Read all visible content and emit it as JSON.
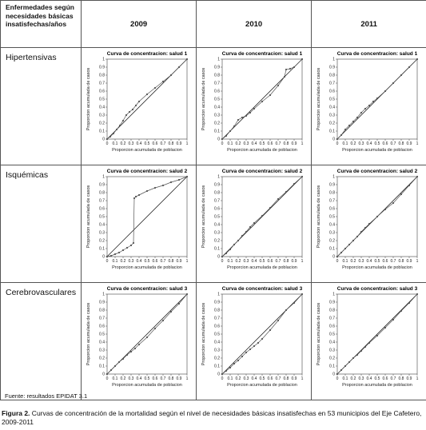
{
  "table": {
    "header_label": "Enfermedades según necesidades básicas insatisfechas/años",
    "years": [
      "2009",
      "2010",
      "2011"
    ],
    "rows": [
      {
        "label": "Hipertensivas"
      },
      {
        "label": "Isquémicas"
      },
      {
        "label": "Cerebrovasculares"
      }
    ]
  },
  "source": "Fuente: resultados EPIDAT 3.1",
  "caption": {
    "prefix": "Figura 2.",
    "text": " Curvas de concentración de la mortalidad según el nivel de necesidades básicas insatisfechas en 53 municipios del Eje Cafetero, 2009-2011"
  },
  "chart_data": [
    {
      "type": "line",
      "disease": "Hipertensivas",
      "year": "2009",
      "title": "Curva de concentracion: salud 1",
      "xlabel": "Proporcion acumulada de poblacion",
      "ylabel": "Proporcion acumulada de casos",
      "xlim": [
        0,
        1
      ],
      "ylim": [
        0,
        1
      ],
      "xticks": [
        "0",
        "0.1",
        "0.2",
        "0.3",
        "0.4",
        "0.5",
        "0.6",
        "0.7",
        "0.8",
        "0.9",
        "1"
      ],
      "yticks": [
        "0",
        "0.1",
        "0.2",
        "0.3",
        "0.4",
        "0.5",
        "0.6",
        "0.7",
        "0.8",
        "0.9",
        "1"
      ],
      "series": [
        {
          "x": [
            0,
            0.04,
            0.08,
            0.12,
            0.16,
            0.2,
            0.24,
            0.28,
            0.32,
            0.36,
            0.4,
            0.5,
            0.6,
            0.7,
            0.8,
            0.9,
            1
          ],
          "y": [
            0,
            0.03,
            0.07,
            0.12,
            0.17,
            0.23,
            0.3,
            0.34,
            0.37,
            0.42,
            0.47,
            0.56,
            0.64,
            0.72,
            0.8,
            0.9,
            1
          ]
        }
      ]
    },
    {
      "type": "line",
      "disease": "Hipertensivas",
      "year": "2010",
      "title": "Curva de concentracion: salud 1",
      "xlabel": "Proporcion acumulada de poblacion",
      "ylabel": "Proporcion acumulada de casos",
      "xlim": [
        0,
        1
      ],
      "ylim": [
        0,
        1
      ],
      "xticks": [
        "0",
        "0.1",
        "0.2",
        "0.3",
        "0.4",
        "0.5",
        "0.6",
        "0.7",
        "0.8",
        "0.9",
        "1"
      ],
      "yticks": [
        "0",
        "0.1",
        "0.2",
        "0.3",
        "0.4",
        "0.5",
        "0.6",
        "0.7",
        "0.8",
        "0.9",
        "1"
      ],
      "series": [
        {
          "x": [
            0,
            0.05,
            0.1,
            0.15,
            0.2,
            0.25,
            0.3,
            0.35,
            0.4,
            0.5,
            0.6,
            0.7,
            0.78,
            0.8,
            0.85,
            0.9,
            1
          ],
          "y": [
            0,
            0.04,
            0.1,
            0.16,
            0.24,
            0.27,
            0.29,
            0.33,
            0.38,
            0.47,
            0.55,
            0.67,
            0.78,
            0.87,
            0.88,
            0.9,
            1
          ]
        }
      ]
    },
    {
      "type": "line",
      "disease": "Hipertensivas",
      "year": "2011",
      "title": "Curva de concentracion: salud 1",
      "xlabel": "Proporcion acumulada de poblacion",
      "ylabel": "Proporcion acumulada de casos",
      "xlim": [
        0,
        1
      ],
      "ylim": [
        0,
        1
      ],
      "xticks": [
        "0",
        "0.1",
        "0.2",
        "0.3",
        "0.4",
        "0.5",
        "0.6",
        "0.7",
        "0.8",
        "0.9",
        "1"
      ],
      "yticks": [
        "0",
        "0.1",
        "0.2",
        "0.3",
        "0.4",
        "0.5",
        "0.6",
        "0.7",
        "0.8",
        "0.9",
        "1"
      ],
      "series": [
        {
          "x": [
            0,
            0.05,
            0.1,
            0.15,
            0.2,
            0.25,
            0.3,
            0.35,
            0.4,
            0.45,
            0.5,
            0.6,
            0.7,
            0.8,
            0.9,
            1
          ],
          "y": [
            0,
            0.05,
            0.12,
            0.17,
            0.22,
            0.27,
            0.33,
            0.38,
            0.42,
            0.47,
            0.51,
            0.6,
            0.7,
            0.8,
            0.9,
            1
          ]
        }
      ]
    },
    {
      "type": "line",
      "disease": "Isquémicas",
      "year": "2009",
      "title": "Curva de concentracion: salud 2",
      "xlabel": "Proporcion acumulada de poblacion",
      "ylabel": "Proporcion acumulada de casos",
      "xlim": [
        0,
        1
      ],
      "ylim": [
        0,
        1
      ],
      "xticks": [
        "0",
        "0.1",
        "0.2",
        "0.3",
        "0.4",
        "0.5",
        "0.6",
        "0.7",
        "0.8",
        "0.9",
        "1"
      ],
      "yticks": [
        "0",
        "0.1",
        "0.2",
        "0.3",
        "0.4",
        "0.5",
        "0.6",
        "0.7",
        "0.8",
        "0.9",
        "1"
      ],
      "series": [
        {
          "x": [
            0,
            0.05,
            0.1,
            0.15,
            0.2,
            0.25,
            0.3,
            0.33,
            0.34,
            0.36,
            0.4,
            0.5,
            0.6,
            0.7,
            0.8,
            0.9,
            1
          ],
          "y": [
            0,
            0.01,
            0.03,
            0.05,
            0.08,
            0.11,
            0.14,
            0.17,
            0.73,
            0.75,
            0.77,
            0.82,
            0.86,
            0.89,
            0.93,
            0.96,
            1
          ]
        }
      ]
    },
    {
      "type": "line",
      "disease": "Isquémicas",
      "year": "2010",
      "title": "Curva de concentracion: salud 2",
      "xlabel": "Proporcion acumulada de poblacion",
      "ylabel": "Proporcion acumulada de casos",
      "xlim": [
        0,
        1
      ],
      "ylim": [
        0,
        1
      ],
      "xticks": [
        "0",
        "0.1",
        "0.2",
        "0.3",
        "0.4",
        "0.5",
        "0.6",
        "0.7",
        "0.8",
        "0.9",
        "1"
      ],
      "yticks": [
        "0",
        "0.1",
        "0.2",
        "0.3",
        "0.4",
        "0.5",
        "0.6",
        "0.7",
        "0.8",
        "0.9",
        "1"
      ],
      "series": [
        {
          "x": [
            0,
            0.05,
            0.1,
            0.15,
            0.2,
            0.25,
            0.3,
            0.35,
            0.4,
            0.5,
            0.6,
            0.7,
            0.8,
            0.9,
            1
          ],
          "y": [
            0,
            0.04,
            0.09,
            0.15,
            0.2,
            0.26,
            0.31,
            0.37,
            0.42,
            0.51,
            0.61,
            0.72,
            0.81,
            0.91,
            1
          ]
        }
      ]
    },
    {
      "type": "line",
      "disease": "Isquémicas",
      "year": "2011",
      "title": "Curva de concentracion: salud 2",
      "xlabel": "Proporcion acumulada de poblacion",
      "ylabel": "Proporcion acumulada de casos",
      "xlim": [
        0,
        1
      ],
      "ylim": [
        0,
        1
      ],
      "xticks": [
        "0",
        "0.1",
        "0.2",
        "0.3",
        "0.4",
        "0.5",
        "0.6",
        "0.7",
        "0.8",
        "0.9",
        "1"
      ],
      "yticks": [
        "0",
        "0.1",
        "0.2",
        "0.3",
        "0.4",
        "0.5",
        "0.6",
        "0.7",
        "0.8",
        "0.9",
        "1"
      ],
      "series": [
        {
          "x": [
            0,
            0.05,
            0.1,
            0.15,
            0.2,
            0.25,
            0.3,
            0.35,
            0.4,
            0.5,
            0.6,
            0.7,
            0.8,
            0.9,
            1
          ],
          "y": [
            0,
            0.05,
            0.1,
            0.15,
            0.2,
            0.25,
            0.31,
            0.36,
            0.41,
            0.5,
            0.59,
            0.67,
            0.78,
            0.89,
            1
          ]
        }
      ]
    },
    {
      "type": "line",
      "disease": "Cerebrovasculares",
      "year": "2009",
      "title": "Curva de concentracion: salud 3",
      "xlabel": "Proporcion acumulada de poblacion",
      "ylabel": "Proporcion acumulada de casos",
      "xlim": [
        0,
        1
      ],
      "ylim": [
        0,
        1
      ],
      "xticks": [
        "0",
        "0.1",
        "0.2",
        "0.3",
        "0.4",
        "0.5",
        "0.6",
        "0.7",
        "0.8",
        "0.9",
        "1"
      ],
      "yticks": [
        "0",
        "0.1",
        "0.2",
        "0.3",
        "0.4",
        "0.5",
        "0.6",
        "0.7",
        "0.8",
        "0.9",
        "1"
      ],
      "series": [
        {
          "x": [
            0,
            0.05,
            0.1,
            0.15,
            0.2,
            0.25,
            0.3,
            0.35,
            0.4,
            0.5,
            0.6,
            0.7,
            0.8,
            0.9,
            1
          ],
          "y": [
            0,
            0.05,
            0.1,
            0.15,
            0.19,
            0.24,
            0.28,
            0.32,
            0.37,
            0.46,
            0.57,
            0.67,
            0.78,
            0.88,
            1
          ]
        }
      ]
    },
    {
      "type": "line",
      "disease": "Cerebrovasculares",
      "year": "2010",
      "title": "Curva de concentracion: salud 3",
      "xlabel": "Proporcion acumulada de poblacion",
      "ylabel": "Proporcion acumulada de casos",
      "xlim": [
        0,
        1
      ],
      "ylim": [
        0,
        1
      ],
      "xticks": [
        "0",
        "0.1",
        "0.2",
        "0.3",
        "0.4",
        "0.5",
        "0.6",
        "0.7",
        "0.8",
        "0.9",
        "1"
      ],
      "yticks": [
        "0",
        "0.1",
        "0.2",
        "0.3",
        "0.4",
        "0.5",
        "0.6",
        "0.7",
        "0.8",
        "0.9",
        "1"
      ],
      "series": [
        {
          "x": [
            0,
            0.05,
            0.1,
            0.15,
            0.2,
            0.25,
            0.3,
            0.35,
            0.4,
            0.45,
            0.5,
            0.6,
            0.7,
            0.8,
            0.9,
            1
          ],
          "y": [
            0,
            0.04,
            0.08,
            0.13,
            0.17,
            0.22,
            0.27,
            0.31,
            0.35,
            0.39,
            0.44,
            0.55,
            0.67,
            0.8,
            0.89,
            1
          ]
        }
      ]
    },
    {
      "type": "line",
      "disease": "Cerebrovasculares",
      "year": "2011",
      "title": "Curva de concentracion: salud 3",
      "xlabel": "Proporcion acumulada de poblacion",
      "ylabel": "Proporcion acumulada de casos",
      "xlim": [
        0,
        1
      ],
      "ylim": [
        0,
        1
      ],
      "xticks": [
        "0",
        "0.1",
        "0.2",
        "0.3",
        "0.4",
        "0.5",
        "0.6",
        "0.7",
        "0.8",
        "0.9",
        "1"
      ],
      "yticks": [
        "0",
        "0.1",
        "0.2",
        "0.3",
        "0.4",
        "0.5",
        "0.6",
        "0.7",
        "0.8",
        "0.9",
        "1"
      ],
      "series": [
        {
          "x": [
            0,
            0.05,
            0.1,
            0.15,
            0.2,
            0.25,
            0.3,
            0.35,
            0.4,
            0.5,
            0.6,
            0.7,
            0.8,
            0.9,
            1
          ],
          "y": [
            0,
            0.05,
            0.1,
            0.15,
            0.2,
            0.24,
            0.29,
            0.34,
            0.39,
            0.48,
            0.58,
            0.68,
            0.79,
            0.89,
            1
          ]
        }
      ]
    }
  ]
}
